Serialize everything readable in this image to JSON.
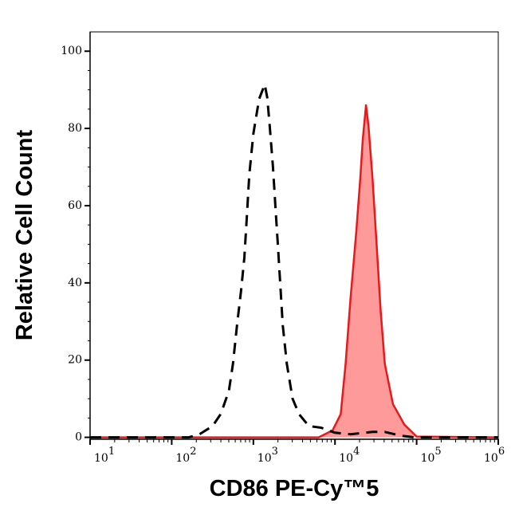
{
  "chart_data": {
    "type": "area",
    "xlabel": "CD86 PE-Cy™5",
    "ylabel": "Relative Cell Count",
    "x_scale": "log",
    "xlim": [
      10,
      1000000
    ],
    "ylim": [
      -0.5,
      105
    ],
    "x_ticks": [
      {
        "base": "10",
        "exp": "1",
        "value": 10
      },
      {
        "base": "10",
        "exp": "2",
        "value": 100
      },
      {
        "base": "10",
        "exp": "3",
        "value": 1000
      },
      {
        "base": "10",
        "exp": "4",
        "value": 10000
      },
      {
        "base": "10",
        "exp": "5",
        "value": 100000
      },
      {
        "base": "10",
        "exp": "6",
        "value": 1000000
      }
    ],
    "y_ticks": [
      "0",
      "20",
      "40",
      "60",
      "80",
      "100"
    ],
    "grid": false,
    "series": [
      {
        "style": "dashed-line",
        "color": "#000000",
        "x": [
          10,
          162,
          219,
          316,
          398,
          501,
          562,
          631,
          708,
          776,
          832,
          891,
          1000,
          1175,
          1380,
          1479,
          1585,
          1738,
          1862,
          1995,
          2138,
          2291,
          2570,
          3020,
          3631,
          4786,
          6761,
          10000,
          15488,
          28840,
          40738,
          64565,
          93325,
          1000000
        ],
        "y": [
          0,
          0,
          0.8,
          2.9,
          6,
          12,
          19,
          29,
          38,
          46.5,
          57,
          68,
          78.6,
          87.6,
          91.4,
          88,
          80.7,
          70,
          60,
          50,
          39.5,
          29,
          19,
          10,
          6,
          2.9,
          2.5,
          1.2,
          0.8,
          1.4,
          1.4,
          0.4,
          0,
          0
        ]
      },
      {
        "style": "filled-area",
        "color": "#e8191b",
        "fill": "#ff9a9a",
        "x": [
          10,
          6310,
          9333,
          11749,
          13490,
          15488,
          18197,
          20417,
          21878,
          23988,
          25704,
          28840,
          32359,
          36308,
          40738,
          51286,
          70795,
          100000,
          1000000
        ],
        "y": [
          0,
          0,
          1.8,
          6,
          19,
          36,
          53,
          67,
          77,
          86,
          80.7,
          67,
          50,
          32.7,
          19,
          8.6,
          3.3,
          0.2,
          0
        ]
      }
    ]
  }
}
